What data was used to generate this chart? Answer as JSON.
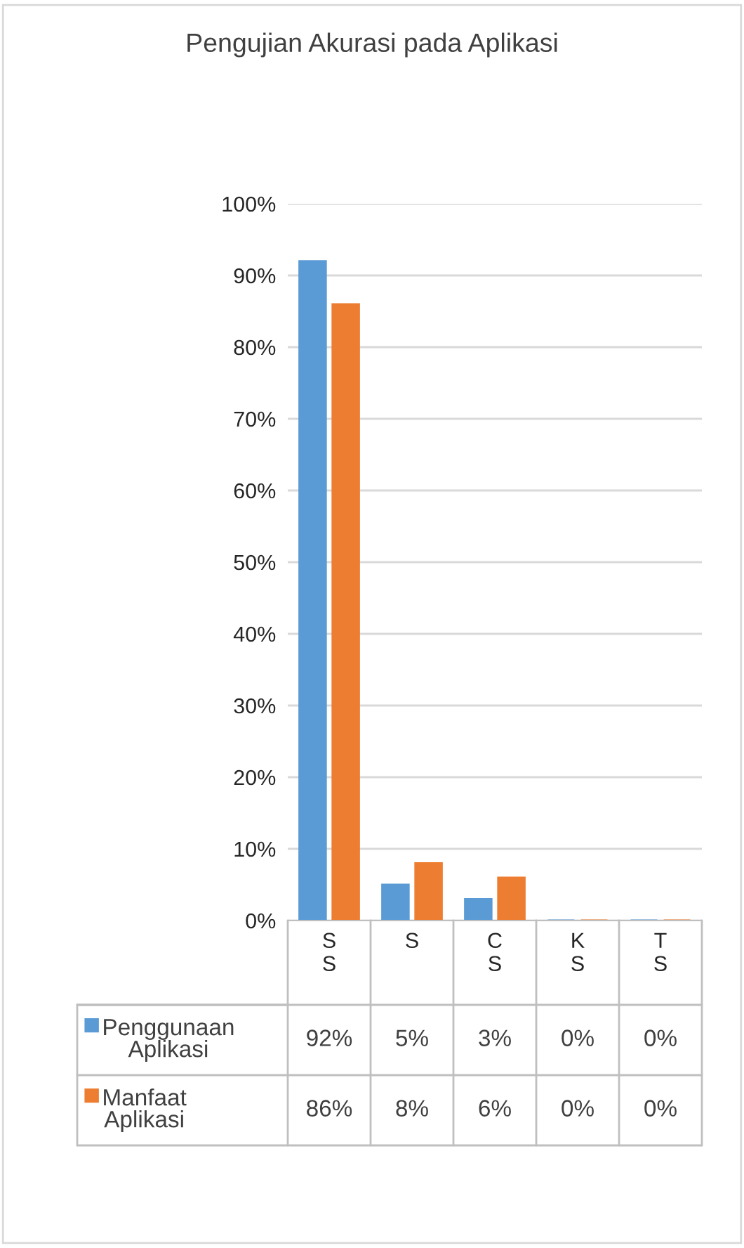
{
  "chart_data": {
    "type": "bar",
    "title": "Pengujian Akurasi pada Aplikasi",
    "categories": [
      "SS",
      "S",
      "CS",
      "KS",
      "TS"
    ],
    "series": [
      {
        "name": "Penggunaan Aplikasi",
        "color": "#5b9bd5",
        "values": [
          92,
          5,
          3,
          0,
          0
        ],
        "value_labels": [
          "92%",
          "5%",
          "3%",
          "0%",
          "0%"
        ]
      },
      {
        "name": "Manfaat Aplikasi",
        "color": "#ed7d31",
        "values": [
          86,
          8,
          6,
          0,
          0
        ],
        "value_labels": [
          "86%",
          "8%",
          "6%",
          "0%",
          "0%"
        ]
      }
    ],
    "ylim": [
      0,
      100
    ],
    "yticks": [
      {
        "value": 0,
        "label": "0%"
      },
      {
        "value": 10,
        "label": "10%"
      },
      {
        "value": 20,
        "label": "20%"
      },
      {
        "value": 30,
        "label": "30%"
      },
      {
        "value": 40,
        "label": "40%"
      },
      {
        "value": 50,
        "label": "50%"
      },
      {
        "value": 60,
        "label": "60%"
      },
      {
        "value": 70,
        "label": "70%"
      },
      {
        "value": 80,
        "label": "80%"
      },
      {
        "value": 90,
        "label": "90%"
      },
      {
        "value": 100,
        "label": "100%"
      }
    ],
    "grid": "y",
    "legend": "bottom"
  }
}
